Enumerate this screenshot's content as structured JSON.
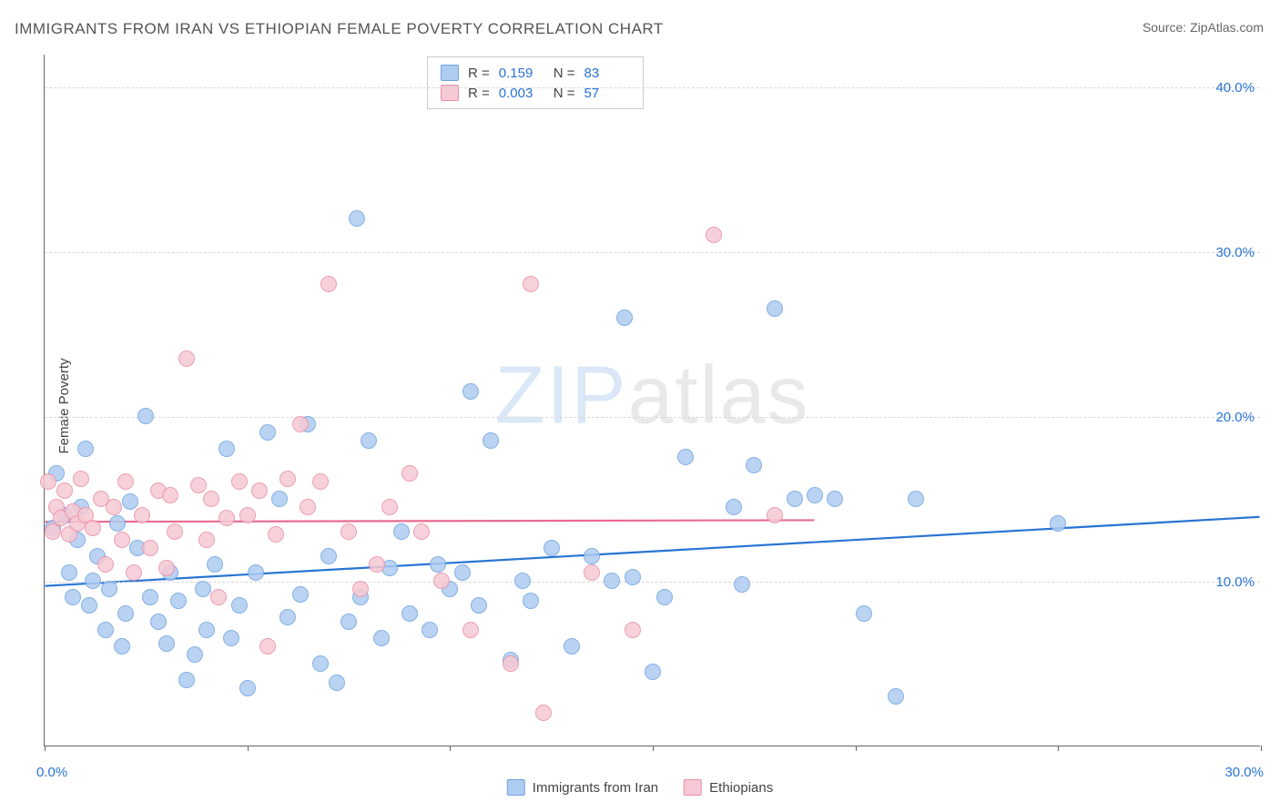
{
  "title": "IMMIGRANTS FROM IRAN VS ETHIOPIAN FEMALE POVERTY CORRELATION CHART",
  "source": "Source: ZipAtlas.com",
  "watermark_zip": "ZIP",
  "watermark_atlas": "atlas",
  "ylabel": "Female Poverty",
  "chart": {
    "type": "scatter",
    "xlim": [
      0,
      30
    ],
    "ylim": [
      0,
      42
    ],
    "yticks": [
      10,
      20,
      30,
      40
    ],
    "ytick_labels": [
      "10.0%",
      "20.0%",
      "30.0%",
      "40.0%"
    ],
    "xtick_label_left": "0.0%",
    "xtick_label_right": "30.0%",
    "xtick_marks": [
      0,
      5,
      10,
      15,
      20,
      25,
      30
    ],
    "gridline_color": "#d8d8d8",
    "background_color": "#ffffff",
    "marker_radius": 9,
    "marker_border_width": 1.5,
    "marker_fill_opacity": 0.35,
    "series": [
      {
        "name": "Immigrants from Iran",
        "color_fill": "#aeccf2",
        "color_border": "#6fa3df",
        "trend_color": "#2874d4",
        "trend": {
          "x0": 0,
          "y0": 9.7,
          "x1": 30,
          "y1": 13.9
        },
        "R": "0.159",
        "N": "83",
        "points": [
          [
            0.2,
            13.2
          ],
          [
            0.3,
            16.5
          ],
          [
            0.5,
            14.0
          ],
          [
            0.6,
            10.5
          ],
          [
            0.7,
            9.0
          ],
          [
            0.8,
            12.5
          ],
          [
            0.9,
            14.5
          ],
          [
            1.0,
            18.0
          ],
          [
            1.1,
            8.5
          ],
          [
            1.2,
            10.0
          ],
          [
            1.3,
            11.5
          ],
          [
            1.5,
            7.0
          ],
          [
            1.6,
            9.5
          ],
          [
            1.8,
            13.5
          ],
          [
            1.9,
            6.0
          ],
          [
            2.0,
            8.0
          ],
          [
            2.1,
            14.8
          ],
          [
            2.3,
            12.0
          ],
          [
            2.5,
            20.0
          ],
          [
            2.6,
            9.0
          ],
          [
            2.8,
            7.5
          ],
          [
            3.0,
            6.2
          ],
          [
            3.1,
            10.5
          ],
          [
            3.3,
            8.8
          ],
          [
            3.5,
            4.0
          ],
          [
            3.7,
            5.5
          ],
          [
            3.9,
            9.5
          ],
          [
            4.0,
            7.0
          ],
          [
            4.2,
            11.0
          ],
          [
            4.5,
            18.0
          ],
          [
            4.6,
            6.5
          ],
          [
            4.8,
            8.5
          ],
          [
            5.0,
            3.5
          ],
          [
            5.2,
            10.5
          ],
          [
            5.5,
            19.0
          ],
          [
            5.8,
            15.0
          ],
          [
            6.0,
            7.8
          ],
          [
            6.3,
            9.2
          ],
          [
            6.5,
            19.5
          ],
          [
            6.8,
            5.0
          ],
          [
            7.0,
            11.5
          ],
          [
            7.2,
            3.8
          ],
          [
            7.5,
            7.5
          ],
          [
            7.7,
            32.0
          ],
          [
            7.8,
            9.0
          ],
          [
            8.0,
            18.5
          ],
          [
            8.3,
            6.5
          ],
          [
            8.5,
            10.8
          ],
          [
            8.8,
            13.0
          ],
          [
            9.0,
            8.0
          ],
          [
            9.5,
            7.0
          ],
          [
            9.7,
            11.0
          ],
          [
            10.0,
            9.5
          ],
          [
            10.3,
            10.5
          ],
          [
            10.5,
            21.5
          ],
          [
            10.7,
            8.5
          ],
          [
            11.0,
            18.5
          ],
          [
            11.5,
            5.2
          ],
          [
            11.8,
            10.0
          ],
          [
            12.0,
            8.8
          ],
          [
            12.5,
            12.0
          ],
          [
            13.0,
            6.0
          ],
          [
            13.5,
            11.5
          ],
          [
            14.0,
            10.0
          ],
          [
            14.3,
            26.0
          ],
          [
            14.5,
            10.2
          ],
          [
            15.0,
            4.5
          ],
          [
            15.3,
            9.0
          ],
          [
            15.8,
            17.5
          ],
          [
            17.0,
            14.5
          ],
          [
            17.2,
            9.8
          ],
          [
            17.5,
            17.0
          ],
          [
            18.0,
            26.5
          ],
          [
            18.5,
            15.0
          ],
          [
            19.0,
            15.2
          ],
          [
            19.5,
            15.0
          ],
          [
            20.2,
            8.0
          ],
          [
            21.0,
            3.0
          ],
          [
            21.5,
            15.0
          ],
          [
            25.0,
            13.5
          ]
        ]
      },
      {
        "name": "Ethiopians",
        "color_fill": "#f6c9d4",
        "color_border": "#e98fa6",
        "trend_color": "#e86b8f",
        "trend": {
          "x0": 0,
          "y0": 13.6,
          "x1": 19,
          "y1": 13.7
        },
        "R": "0.003",
        "N": "57",
        "points": [
          [
            0.1,
            16.0
          ],
          [
            0.2,
            13.0
          ],
          [
            0.3,
            14.5
          ],
          [
            0.4,
            13.8
          ],
          [
            0.5,
            15.5
          ],
          [
            0.6,
            12.8
          ],
          [
            0.7,
            14.2
          ],
          [
            0.8,
            13.5
          ],
          [
            0.9,
            16.2
          ],
          [
            1.0,
            14.0
          ],
          [
            1.2,
            13.2
          ],
          [
            1.4,
            15.0
          ],
          [
            1.5,
            11.0
          ],
          [
            1.7,
            14.5
          ],
          [
            1.9,
            12.5
          ],
          [
            2.0,
            16.0
          ],
          [
            2.2,
            10.5
          ],
          [
            2.4,
            14.0
          ],
          [
            2.6,
            12.0
          ],
          [
            2.8,
            15.5
          ],
          [
            3.0,
            10.8
          ],
          [
            3.1,
            15.2
          ],
          [
            3.2,
            13.0
          ],
          [
            3.5,
            23.5
          ],
          [
            3.8,
            15.8
          ],
          [
            4.0,
            12.5
          ],
          [
            4.1,
            15.0
          ],
          [
            4.3,
            9.0
          ],
          [
            4.5,
            13.8
          ],
          [
            4.8,
            16.0
          ],
          [
            5.0,
            14.0
          ],
          [
            5.3,
            15.5
          ],
          [
            5.5,
            6.0
          ],
          [
            5.7,
            12.8
          ],
          [
            6.0,
            16.2
          ],
          [
            6.3,
            19.5
          ],
          [
            6.5,
            14.5
          ],
          [
            6.8,
            16.0
          ],
          [
            7.0,
            28.0
          ],
          [
            7.5,
            13.0
          ],
          [
            7.8,
            9.5
          ],
          [
            8.2,
            11.0
          ],
          [
            8.5,
            14.5
          ],
          [
            9.0,
            16.5
          ],
          [
            9.3,
            13.0
          ],
          [
            9.8,
            10.0
          ],
          [
            10.5,
            7.0
          ],
          [
            11.5,
            5.0
          ],
          [
            12.0,
            28.0
          ],
          [
            12.3,
            2.0
          ],
          [
            13.5,
            10.5
          ],
          [
            14.5,
            7.0
          ],
          [
            16.5,
            31.0
          ],
          [
            18.0,
            14.0
          ]
        ]
      }
    ]
  },
  "bottom_legend": {
    "items": [
      {
        "label": "Immigrants from Iran",
        "fill": "#aeccf2",
        "border": "#6fa3df"
      },
      {
        "label": "Ethiopians",
        "fill": "#f6c9d4",
        "border": "#e98fa6"
      }
    ]
  }
}
